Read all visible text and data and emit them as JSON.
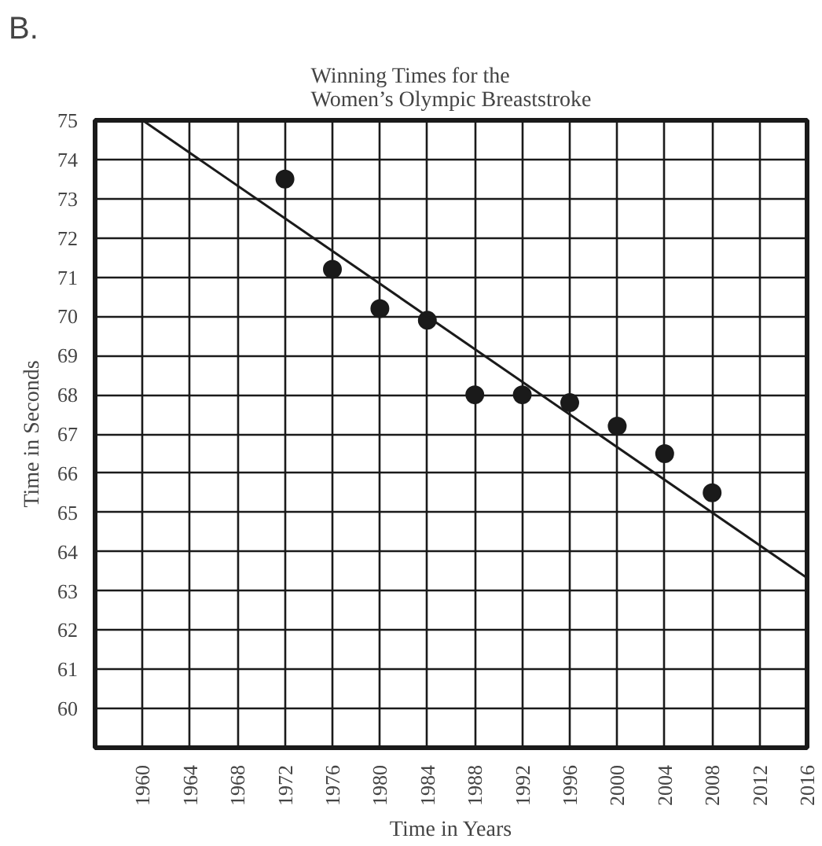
{
  "chart_data": {
    "type": "scatter",
    "title": "Winning Times for the\nWomen’s Olympic Breaststroke",
    "xlabel": "Time in Years",
    "ylabel": "Time in Seconds",
    "annotations": [
      "B."
    ],
    "xlim": [
      1956,
      2016
    ],
    "ylim": [
      59,
      75
    ],
    "xticks": [
      1960,
      1964,
      1968,
      1972,
      1976,
      1980,
      1984,
      1988,
      1992,
      1996,
      2000,
      2004,
      2008,
      2012,
      2016
    ],
    "yticks": [
      60,
      61,
      62,
      63,
      64,
      65,
      66,
      67,
      68,
      69,
      70,
      71,
      72,
      73,
      74,
      75
    ],
    "grid": true,
    "marker": "circle",
    "series": [
      {
        "color": "#1a1a1a",
        "x": [
          1972,
          1976,
          1980,
          1984,
          1988,
          1992,
          1996,
          2000,
          2004,
          2008
        ],
        "values": [
          73.5,
          71.2,
          70.2,
          69.9,
          68.0,
          68.0,
          67.8,
          67.2,
          66.5,
          65.5
        ]
      },
      {
        "type": "line",
        "color": "#1a1a1a",
        "x": [
          1960,
          2016
        ],
        "values": [
          75,
          63.33
        ],
        "line_style": "solid",
        "marker": "none"
      }
    ]
  }
}
